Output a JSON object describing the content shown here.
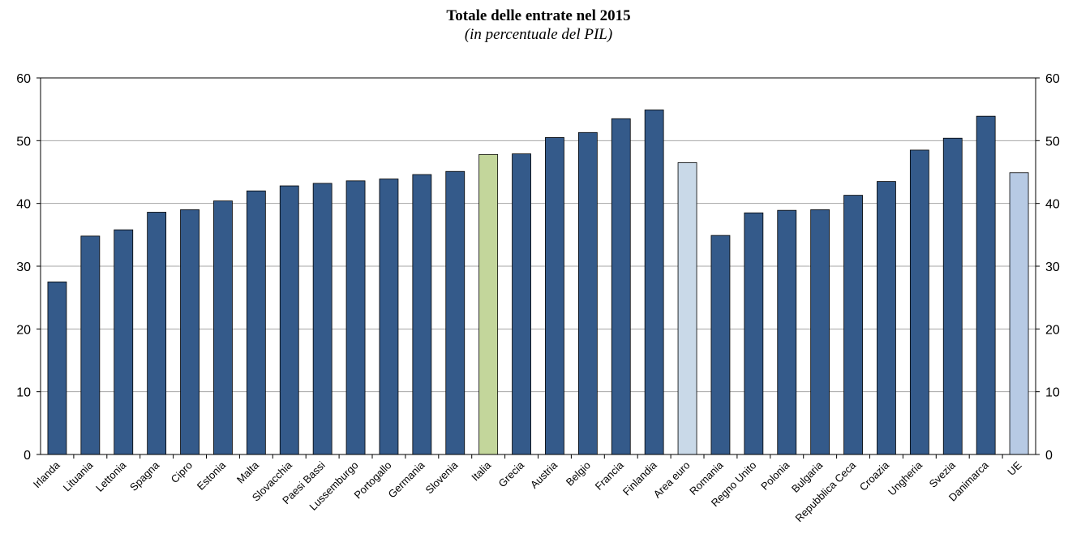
{
  "chart_data": {
    "type": "bar",
    "title": "Totale delle entrate nel 2015",
    "subtitle": "(in percentuale del PIL)",
    "ylim": [
      0,
      60
    ],
    "yticks": [
      0,
      10,
      20,
      30,
      40,
      50,
      60
    ],
    "grid": true,
    "categories": [
      "Irlanda",
      "Lituania",
      "Lettonia",
      "Spagna",
      "Cipro",
      "Estonia",
      "Malta",
      "Slovacchia",
      "Paesi Bassi",
      "Lussemburgo",
      "Portogallo",
      "Germania",
      "Slovenia",
      "Italia",
      "Grecia",
      "Austria",
      "Belgio",
      "Francia",
      "Finlandia",
      "Area euro",
      "Romania",
      "Regno Unito",
      "Polonia",
      "Bulgaria",
      "Repubblica Ceca",
      "Croazia",
      "Ungheria",
      "Svezia",
      "Danimarca",
      "UE"
    ],
    "values": [
      27.5,
      34.8,
      35.8,
      38.6,
      39.0,
      40.4,
      42.0,
      42.8,
      43.2,
      43.6,
      43.9,
      44.6,
      45.1,
      47.8,
      47.9,
      50.5,
      51.3,
      53.5,
      54.9,
      46.5,
      34.9,
      38.5,
      38.9,
      39.0,
      41.3,
      43.5,
      48.5,
      50.4,
      53.9,
      44.9
    ],
    "colors": {
      "default": "#345a8a",
      "Italia": "#c3d69b",
      "Area euro": "#c9d9e8",
      "UE": "#b7cae4"
    }
  }
}
